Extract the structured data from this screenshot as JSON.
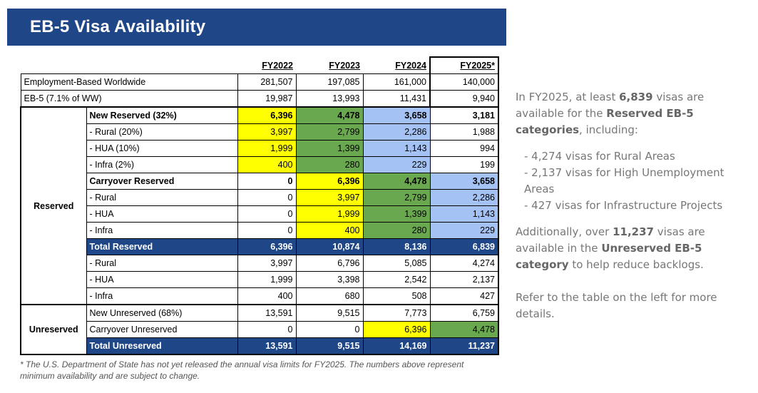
{
  "title": "EB-5 Visa Availability",
  "columns": [
    "FY2022",
    "FY2023",
    "FY2024",
    "FY2025*"
  ],
  "top_rows": [
    {
      "label": "Employment-Based Worldwide",
      "values": [
        "281,507",
        "197,085",
        "161,000",
        "140,000"
      ]
    },
    {
      "label": "EB-5 (7.1% of WW)",
      "values": [
        "19,987",
        "13,993",
        "11,431",
        "9,940"
      ]
    }
  ],
  "reserved": {
    "group_label": "Reserved",
    "rows": [
      {
        "label": "New Reserved (32%)",
        "values": [
          "6,396",
          "4,478",
          "3,658",
          "3,181"
        ]
      },
      {
        "label": "- Rural (20%)",
        "values": [
          "3,997",
          "2,799",
          "2,286",
          "1,988"
        ]
      },
      {
        "label": "- HUA (10%)",
        "values": [
          "1,999",
          "1,399",
          "1,143",
          "994"
        ]
      },
      {
        "label": "- Infra (2%)",
        "values": [
          "400",
          "280",
          "229",
          "199"
        ]
      },
      {
        "label": "Carryover Reserved",
        "values": [
          "0",
          "6,396",
          "4,478",
          "3,658"
        ]
      },
      {
        "label": "- Rural",
        "values": [
          "0",
          "3,997",
          "2,799",
          "2,286"
        ]
      },
      {
        "label": "- HUA",
        "values": [
          "0",
          "1,999",
          "1,399",
          "1,143"
        ]
      },
      {
        "label": "- Infra",
        "values": [
          "0",
          "400",
          "280",
          "229"
        ]
      },
      {
        "label": "Total Reserved",
        "values": [
          "6,396",
          "10,874",
          "8,136",
          "6,839"
        ]
      },
      {
        "label": "- Rural",
        "values": [
          "3,997",
          "6,796",
          "5,085",
          "4,274"
        ]
      },
      {
        "label": "- HUA",
        "values": [
          "1,999",
          "3,398",
          "2,542",
          "2,137"
        ]
      },
      {
        "label": "- Infra",
        "values": [
          "400",
          "680",
          "508",
          "427"
        ]
      }
    ]
  },
  "unreserved": {
    "group_label": "Unreserved",
    "rows": [
      {
        "label": "New Unreserved (68%)",
        "values": [
          "13,591",
          "9,515",
          "7,773",
          "6,759"
        ]
      },
      {
        "label": "Carryover Unreserved",
        "values": [
          "0",
          "0",
          "6,396",
          "4,478"
        ]
      },
      {
        "label": "Total Unreserved",
        "values": [
          "13,591",
          "9,515",
          "14,169",
          "11,237"
        ]
      }
    ]
  },
  "colors": {
    "banner": "#1f4788",
    "yellow": "#ffff00",
    "green": "#6aa84f",
    "light_blue": "#a4c2f4"
  },
  "footnote": "* The U.S. Department of State has not yet released the annual visa limits for FY2025. The numbers above represent minimum availability and are subject to change.",
  "side": {
    "p1_pre": "In FY2025, at least ",
    "p1_num": "6,839",
    "p1_mid": " visas are available for the ",
    "p1_bold": "Reserved EB-5 categories",
    "p1_post": ", including:",
    "bullets": [
      "- 4,274 visas for Rural Areas",
      "- 2,137 visas for High Unemployment Areas",
      "- 427 visas for Infrastructure Projects"
    ],
    "p2_pre": "Additionally, over ",
    "p2_num": "11,237",
    "p2_mid": " visas are available in the ",
    "p2_bold": "Unreserved EB-5 category",
    "p2_post": " to help reduce backlogs.",
    "p3": "Refer to the table on the left for more details."
  }
}
